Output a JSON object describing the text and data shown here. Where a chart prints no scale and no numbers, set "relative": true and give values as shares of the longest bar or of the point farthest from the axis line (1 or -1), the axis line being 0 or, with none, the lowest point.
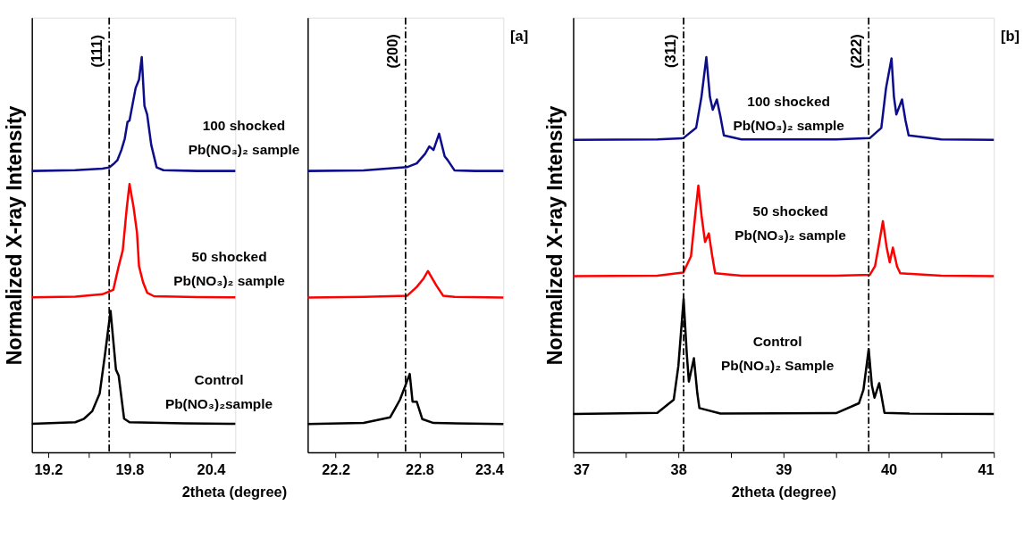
{
  "chart_data": [
    {
      "type": "line",
      "relative": true,
      "tick_labels": "x",
      "line_style": "solid",
      "ylabel": "Normalized X-ray Intensity",
      "xlabel": "2theta (degree)",
      "xlim": [
        19.08,
        20.58
      ],
      "xticks": [
        19.2,
        {
          "value": 19.5,
          "label": null
        },
        19.8,
        {
          "value": 20.1,
          "label": null
        },
        20.4
      ],
      "ref_lines": [
        {
          "axis": "x",
          "value": 19.65,
          "color": "#000000",
          "line_style": "dashed"
        }
      ],
      "annotations": [
        "(111)"
      ],
      "series": [
        {
          "name": "100 shocked\nPb(NO₃)₂ sample",
          "color": "#0d0d8c",
          "x": [
            19.08,
            19.4,
            19.6,
            19.65,
            19.68,
            19.71,
            19.74,
            19.765,
            19.785,
            19.8,
            19.845,
            19.87,
            19.89,
            19.91,
            19.93,
            19.96,
            20.0,
            20.05,
            20.3,
            20.58
          ],
          "values": [
            0.712,
            0.714,
            0.718,
            0.721,
            0.729,
            0.739,
            0.765,
            0.794,
            0.836,
            0.84,
            0.922,
            0.943,
            1.0,
            0.877,
            0.855,
            0.778,
            0.721,
            0.714,
            0.712,
            0.712
          ]
        },
        {
          "name": "50 shocked\nPb(NO₃)₂ sample",
          "color": "#ff0000",
          "x": [
            19.08,
            19.4,
            19.6,
            19.68,
            19.72,
            19.75,
            19.78,
            19.8,
            19.83,
            19.855,
            19.87,
            19.9,
            19.93,
            19.98,
            20.3,
            20.58
          ],
          "values": [
            0.392,
            0.394,
            0.4,
            0.411,
            0.471,
            0.511,
            0.62,
            0.679,
            0.62,
            0.556,
            0.471,
            0.43,
            0.404,
            0.395,
            0.393,
            0.392
          ]
        },
        {
          "name": "Control\nPb(NO₃)₂sample",
          "color": "#000000",
          "x": [
            19.08,
            19.4,
            19.465,
            19.525,
            19.58,
            19.62,
            19.66,
            19.7,
            19.72,
            19.76,
            19.8,
            20.2,
            20.58
          ],
          "values": [
            0.072,
            0.076,
            0.085,
            0.104,
            0.149,
            0.25,
            0.358,
            0.209,
            0.194,
            0.085,
            0.076,
            0.073,
            0.072
          ]
        }
      ]
    },
    {
      "type": "line",
      "relative": true,
      "tick_labels": "x",
      "line_style": "solid",
      "xlim": [
        22.0,
        23.4
      ],
      "xticks": [
        22.2,
        {
          "value": 22.5,
          "label": null
        },
        22.8,
        {
          "value": 23.1,
          "label": null
        },
        23.4
      ],
      "ref_lines": [
        {
          "axis": "x",
          "value": 22.7,
          "color": "#000000",
          "line_style": "dashed"
        }
      ],
      "annotations": [
        "(200)",
        "[a]"
      ],
      "series": [
        {
          "color": "#0d0d8c",
          "x": [
            22.0,
            22.4,
            22.71,
            22.78,
            22.84,
            22.87,
            22.9,
            22.94,
            22.98,
            23.0,
            23.05,
            23.2,
            23.4
          ],
          "values": [
            0.883,
            0.885,
            0.895,
            0.907,
            0.937,
            0.96,
            0.949,
            1.0,
            0.929,
            0.918,
            0.885,
            0.883,
            0.883
          ]
        },
        {
          "color": "#ff0000",
          "x": [
            22.0,
            22.4,
            22.71,
            22.78,
            22.83,
            22.86,
            22.92,
            22.97,
            23.05,
            23.4
          ],
          "values": [
            0.486,
            0.488,
            0.491,
            0.519,
            0.546,
            0.569,
            0.524,
            0.491,
            0.488,
            0.486
          ]
        },
        {
          "color": "#000000",
          "x": [
            22.0,
            22.4,
            22.59,
            22.62,
            22.66,
            22.7,
            22.73,
            22.75,
            22.78,
            22.82,
            22.9,
            23.4
          ],
          "values": [
            0.089,
            0.092,
            0.11,
            0.133,
            0.165,
            0.211,
            0.246,
            0.159,
            0.159,
            0.104,
            0.092,
            0.089
          ]
        }
      ]
    },
    {
      "type": "line",
      "relative": true,
      "tick_labels": "x",
      "line_style": "solid",
      "ylabel": "Normalized X-ray Intensity",
      "xlabel": "2theta (degree)",
      "xlim": [
        37,
        41
      ],
      "xticks": [
        37,
        {
          "value": 37.5,
          "label": null
        },
        38,
        {
          "value": 38.5,
          "label": null
        },
        39,
        {
          "value": 39.5,
          "label": null
        },
        40,
        {
          "value": 40.5,
          "label": null
        },
        41
      ],
      "ref_lines": [
        {
          "axis": "x",
          "value": 38.05,
          "color": "#000000",
          "line_style": "dashed"
        },
        {
          "axis": "x",
          "value": 39.81,
          "color": "#000000",
          "line_style": "dashed"
        }
      ],
      "annotations": [
        "(311)",
        "(222)",
        "[b]"
      ],
      "series": [
        {
          "name": "100 shocked\nPb(NO₃)₂ sample",
          "color": "#0d0d8c",
          "x": [
            37,
            37.8,
            38.047,
            38.169,
            38.22,
            38.266,
            38.3,
            38.327,
            38.366,
            38.4,
            38.433,
            38.6,
            39.5,
            39.82,
            39.93,
            39.975,
            40.027,
            40.05,
            40.073,
            40.127,
            40.16,
            40.19,
            40.5,
            41
          ],
          "values": [
            0.791,
            0.792,
            0.795,
            0.821,
            0.9,
            1.0,
            0.9,
            0.867,
            0.893,
            0.85,
            0.802,
            0.792,
            0.792,
            0.795,
            0.821,
            0.922,
            0.997,
            0.9,
            0.855,
            0.893,
            0.84,
            0.802,
            0.792,
            0.791
          ]
        },
        {
          "name": "50 shocked\nPb(NO₃)₂ sample",
          "color": "#ff0000",
          "x": [
            37,
            37.8,
            38.047,
            38.12,
            38.16,
            38.19,
            38.22,
            38.254,
            38.29,
            38.32,
            38.35,
            38.6,
            39.5,
            39.82,
            39.87,
            39.91,
            39.945,
            39.98,
            40.01,
            40.04,
            40.08,
            40.11,
            40.5,
            41
          ],
          "values": [
            0.446,
            0.447,
            0.455,
            0.496,
            0.6,
            0.675,
            0.6,
            0.532,
            0.554,
            0.5,
            0.453,
            0.447,
            0.447,
            0.449,
            0.471,
            0.53,
            0.585,
            0.52,
            0.481,
            0.518,
            0.47,
            0.453,
            0.447,
            0.446
          ]
        },
        {
          "name": "Control\nPb(NO₃)₂ Sample",
          "color": "#000000",
          "x": [
            37,
            37.8,
            37.956,
            38.0,
            38.05,
            38.08,
            38.1,
            38.148,
            38.18,
            38.2,
            38.4,
            39.5,
            39.717,
            39.76,
            39.81,
            39.84,
            39.865,
            39.91,
            39.96,
            40.2,
            41
          ],
          "values": [
            0.097,
            0.1,
            0.133,
            0.218,
            0.388,
            0.25,
            0.179,
            0.238,
            0.15,
            0.112,
            0.098,
            0.099,
            0.124,
            0.158,
            0.261,
            0.17,
            0.138,
            0.175,
            0.1,
            0.098,
            0.097
          ]
        }
      ]
    }
  ]
}
